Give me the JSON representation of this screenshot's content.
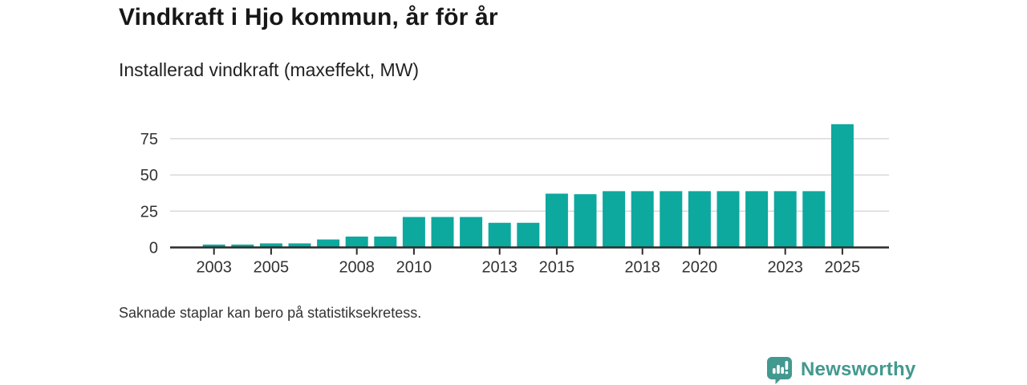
{
  "header": {
    "title": "Vindkraft i Hjo kommun, år för år",
    "subtitle": "Installerad vindkraft (maxeffekt, MW)"
  },
  "chart_data": {
    "type": "bar",
    "title": "Vindkraft i Hjo kommun, år för år",
    "subtitle": "Installerad vindkraft (maxeffekt, MW)",
    "xlabel": "",
    "ylabel": "",
    "categories": [
      2003,
      2004,
      2005,
      2006,
      2007,
      2008,
      2009,
      2010,
      2011,
      2012,
      2013,
      2014,
      2015,
      2016,
      2017,
      2018,
      2019,
      2020,
      2021,
      2022,
      2023,
      2024,
      2025
    ],
    "values": [
      2,
      2,
      2.8,
      2.8,
      5.5,
      7.5,
      7.5,
      21,
      21,
      21,
      17,
      17,
      37.1,
      36.7,
      38.8,
      38.8,
      38.8,
      38.8,
      38.8,
      38.8,
      38.8,
      38.8,
      85
    ],
    "x_tick_labels": [
      "2003",
      "2005",
      "2008",
      "2010",
      "2013",
      "2015",
      "2018",
      "2020",
      "2023",
      "2025"
    ],
    "y_ticks": [
      0,
      25,
      50,
      75
    ],
    "ylim": [
      0,
      93
    ],
    "x_domain_padding": "one empty year slot on each side (2002, 2026)",
    "grid": "horizontal gridlines at 25, 50, 75; no vertical grid",
    "legend": "none",
    "bar_color": "#0da89e",
    "axis_color": "#2b2b2b",
    "grid_color": "#d9d9d9",
    "tick_label_color": "#333333"
  },
  "footnote": {
    "text": "Saknade staplar kan bero på statistiksekretess."
  },
  "branding": {
    "logo_text": "Newsworthy",
    "logo_color": "#42998f",
    "logo_icon": "bar-chart-speech-bubble",
    "logo_icon_glyph_color": "#ffffff"
  }
}
